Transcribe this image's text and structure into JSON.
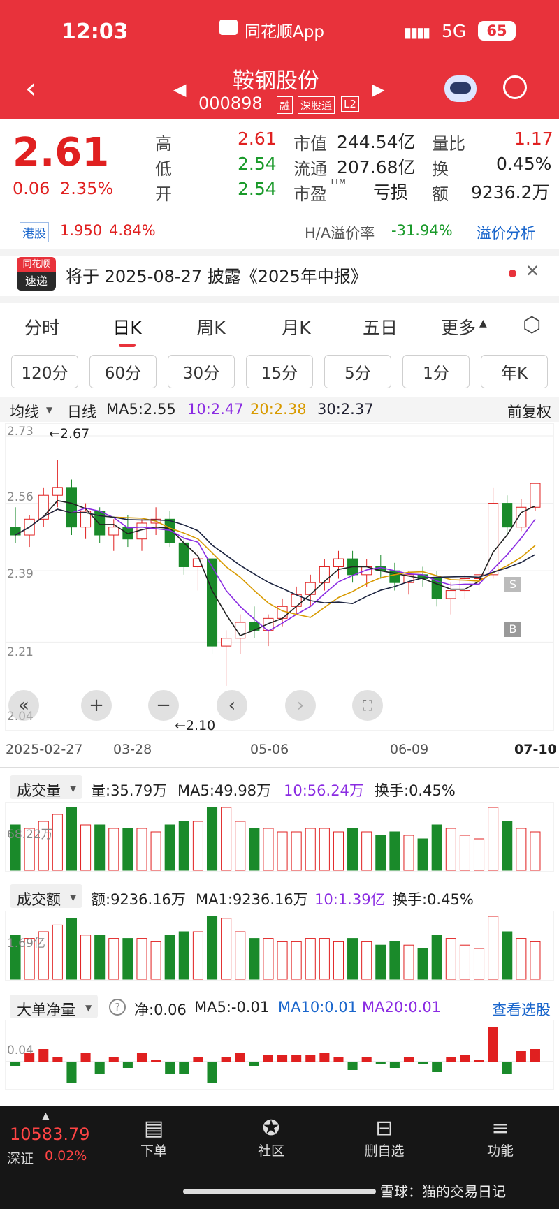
{
  "status_bar": {
    "time": "12:03",
    "app_name": "同花顺App",
    "network": "5G",
    "battery": "65"
  },
  "header": {
    "stock_name": "鞍钢股份",
    "stock_code": "000898",
    "tags": [
      "融",
      "深股通",
      "L2"
    ]
  },
  "quote": {
    "price": "2.61",
    "change": "0.06",
    "change_pct": "2.35%",
    "high_label": "高",
    "high": "2.61",
    "low_label": "低",
    "low": "2.54",
    "open_label": "开",
    "open": "2.54",
    "mcap_label": "市值",
    "mcap": "244.54亿",
    "float_label": "流通",
    "float": "207.68亿",
    "pe_label": "市盈",
    "pe_sup": "TTM",
    "pe": "亏损",
    "vol_ratio_label": "量比",
    "vol_ratio": "1.17",
    "turnover_label": "换",
    "turnover": "0.45%",
    "amount_label": "额",
    "amount": "9236.2万"
  },
  "hk": {
    "label": "港股",
    "price": "1.950",
    "pct": "4.84%",
    "premium_label": "H/A溢价率",
    "premium": "-31.94%",
    "analysis": "溢价分析"
  },
  "news": {
    "logo_top": "同花顺",
    "logo_bottom": "速递",
    "text": "将于 2025-08-27 披露《2025年中报》"
  },
  "tabs": [
    "分时",
    "日K",
    "周K",
    "月K",
    "五日",
    "更多"
  ],
  "period_chips": [
    "120分",
    "60分",
    "30分",
    "15分",
    "5分",
    "1分",
    "年K"
  ],
  "kline": {
    "mode": "均线",
    "period": "日线",
    "ma5": "MA5:2.55",
    "ma10": "10:2.47",
    "ma20": "20:2.38",
    "ma30": "30:2.37",
    "adjust": "前复权",
    "y_ticks": [
      "2.73",
      "2.56",
      "2.39",
      "2.21",
      "2.04"
    ],
    "high_mark": "←2.67",
    "low_mark": "←2.10",
    "x_ticks": [
      "2025-02-27",
      "03-28",
      "05-06",
      "06-09",
      "07-10"
    ],
    "marker_s": "S",
    "marker_b": "B"
  },
  "volume": {
    "title": "成交量",
    "value": "量:35.79万",
    "ma5": "MA5:49.98万",
    "ma10": "10:56.24万",
    "turnover": "换手:0.45%",
    "axis": "68.22万"
  },
  "amount": {
    "title": "成交额",
    "value": "额:9236.16万",
    "ma1": "MA1:9236.16万",
    "ma10": "10:1.39亿",
    "turnover": "换手:0.45%",
    "axis": "1.69亿"
  },
  "bigorder": {
    "title": "大单净量",
    "net": "净:0.06",
    "ma5": "MA5:-0.01",
    "ma10": "MA10:0.01",
    "ma20": "MA20:0.01",
    "link": "查看选股",
    "axis": "0.04"
  },
  "bottom": {
    "index_value": "10583.79",
    "index_name": "深证",
    "index_pct": "0.02%",
    "nav": [
      "下单",
      "社区",
      "删自选",
      "功能"
    ],
    "watermark": "雪球：猫的交易日记"
  },
  "chart_data": {
    "type": "candlestick",
    "title": "鞍钢股份 日K",
    "x_range": [
      "2025-02-27",
      "2025-07-10"
    ],
    "x_ticks": [
      "2025-02-27",
      "03-28",
      "05-06",
      "06-09",
      "07-10"
    ],
    "ylim": [
      2.04,
      2.73
    ],
    "ohlc_sample": [
      [
        2.5,
        2.55,
        2.46,
        2.48
      ],
      [
        2.48,
        2.53,
        2.45,
        2.52
      ],
      [
        2.52,
        2.6,
        2.5,
        2.58
      ],
      [
        2.58,
        2.67,
        2.55,
        2.6
      ],
      [
        2.6,
        2.62,
        2.48,
        2.5
      ],
      [
        2.5,
        2.56,
        2.47,
        2.54
      ],
      [
        2.54,
        2.55,
        2.46,
        2.48
      ],
      [
        2.48,
        2.52,
        2.44,
        2.5
      ],
      [
        2.5,
        2.53,
        2.45,
        2.47
      ],
      [
        2.47,
        2.52,
        2.44,
        2.51
      ],
      [
        2.51,
        2.55,
        2.48,
        2.52
      ],
      [
        2.52,
        2.54,
        2.45,
        2.46
      ],
      [
        2.46,
        2.48,
        2.38,
        2.4
      ],
      [
        2.4,
        2.44,
        2.34,
        2.42
      ],
      [
        2.42,
        2.43,
        2.18,
        2.2
      ],
      [
        2.2,
        2.24,
        2.1,
        2.22
      ],
      [
        2.22,
        2.28,
        2.18,
        2.26
      ],
      [
        2.26,
        2.3,
        2.22,
        2.24
      ],
      [
        2.24,
        2.28,
        2.2,
        2.27
      ],
      [
        2.27,
        2.32,
        2.25,
        2.3
      ],
      [
        2.3,
        2.35,
        2.28,
        2.33
      ],
      [
        2.33,
        2.38,
        2.3,
        2.36
      ],
      [
        2.36,
        2.42,
        2.34,
        2.4
      ],
      [
        2.4,
        2.44,
        2.37,
        2.42
      ],
      [
        2.42,
        2.44,
        2.36,
        2.38
      ],
      [
        2.38,
        2.42,
        2.35,
        2.4
      ],
      [
        2.4,
        2.43,
        2.37,
        2.39
      ],
      [
        2.39,
        2.41,
        2.34,
        2.36
      ],
      [
        2.36,
        2.39,
        2.33,
        2.38
      ],
      [
        2.38,
        2.4,
        2.35,
        2.37
      ],
      [
        2.37,
        2.39,
        2.3,
        2.32
      ],
      [
        2.32,
        2.36,
        2.28,
        2.34
      ],
      [
        2.34,
        2.38,
        2.32,
        2.37
      ],
      [
        2.37,
        2.39,
        2.34,
        2.38
      ],
      [
        2.38,
        2.6,
        2.37,
        2.56
      ],
      [
        2.56,
        2.58,
        2.48,
        2.5
      ],
      [
        2.5,
        2.57,
        2.49,
        2.55
      ],
      [
        2.55,
        2.61,
        2.54,
        2.61
      ]
    ],
    "ma_lines": [
      {
        "name": "MA5",
        "last": 2.55
      },
      {
        "name": "MA10",
        "last": 2.47
      },
      {
        "name": "MA20",
        "last": 2.38
      },
      {
        "name": "MA30",
        "last": 2.37
      }
    ]
  }
}
